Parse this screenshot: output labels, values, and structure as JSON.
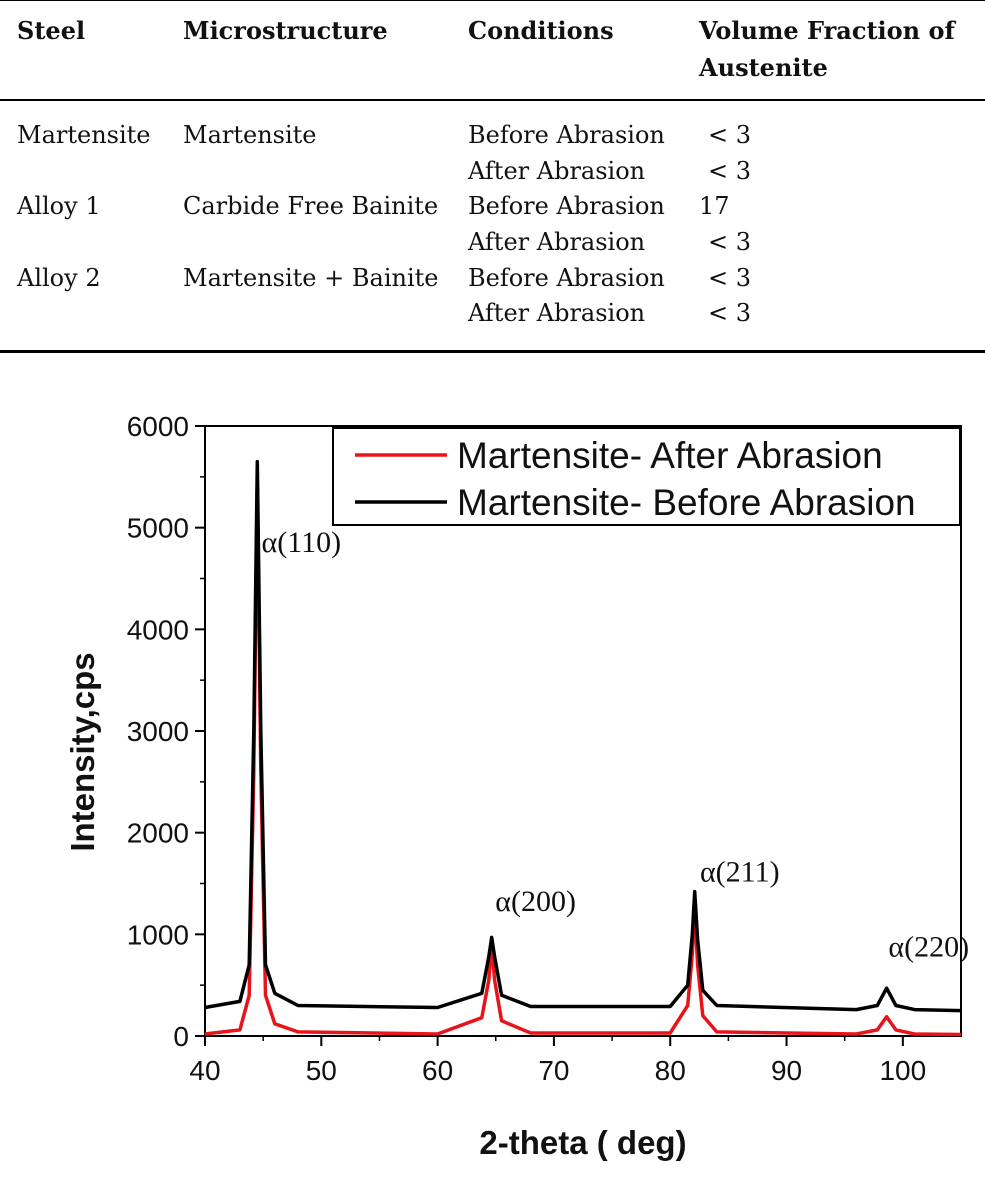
{
  "table": {
    "headers": [
      "Steel",
      "Microstructure",
      "Conditions",
      "Volume Fraction of Austenite"
    ],
    "rows": [
      {
        "steel": "Martensite",
        "microstructure": "Martensite",
        "condition": "Before Abrasion",
        "austenite": "< 3"
      },
      {
        "steel": "",
        "microstructure": "",
        "condition": "After Abrasion",
        "austenite": "< 3"
      },
      {
        "steel": "Alloy 1",
        "microstructure": "Carbide Free Bainite",
        "condition": "Before Abrasion",
        "austenite": "17"
      },
      {
        "steel": "",
        "microstructure": "",
        "condition": "After Abrasion",
        "austenite": "< 3"
      },
      {
        "steel": "Alloy 2",
        "microstructure": "Martensite + Bainite",
        "condition": "Before Abrasion",
        "austenite": "< 3"
      },
      {
        "steel": "",
        "microstructure": "",
        "condition": "After Abrasion",
        "austenite": "< 3"
      }
    ]
  },
  "chart_data": {
    "type": "line",
    "title": "",
    "xlabel": "2-theta ( deg)",
    "ylabel": "Intensity,cps",
    "xlim": [
      40,
      105
    ],
    "ylim": [
      0,
      6000
    ],
    "xticks": [
      40,
      50,
      60,
      70,
      80,
      90,
      100
    ],
    "yticks": [
      0,
      1000,
      2000,
      3000,
      4000,
      5000,
      6000
    ],
    "legend_position": "top-right",
    "series": [
      {
        "name": "Martensite- After Abrasion",
        "color": "#e8141b",
        "x": [
          40,
          43,
          43.8,
          44.2,
          44.5,
          44.8,
          45.2,
          46,
          48,
          60,
          63.8,
          64.4,
          64.65,
          64.9,
          65.5,
          68,
          80,
          81.5,
          81.9,
          82.1,
          82.35,
          82.8,
          84,
          96,
          97.8,
          98.6,
          99.4,
          101,
          105
        ],
        "y": [
          20,
          60,
          400,
          2600,
          5450,
          2600,
          400,
          120,
          40,
          20,
          180,
          550,
          900,
          550,
          150,
          30,
          30,
          300,
          800,
          1250,
          700,
          200,
          40,
          20,
          60,
          190,
          60,
          20,
          15
        ]
      },
      {
        "name": "Martensite- Before Abrasion",
        "color": "#000000",
        "x": [
          40,
          43,
          43.8,
          44.2,
          44.5,
          44.8,
          45.2,
          46,
          48,
          60,
          63.8,
          64.4,
          64.65,
          64.9,
          65.5,
          68,
          80,
          81.5,
          81.9,
          82.1,
          82.35,
          82.8,
          84,
          96,
          97.8,
          98.6,
          99.4,
          101,
          105
        ],
        "y": [
          280,
          340,
          700,
          3000,
          5650,
          3000,
          700,
          420,
          300,
          280,
          420,
          780,
          970,
          780,
          400,
          290,
          290,
          500,
          1000,
          1420,
          950,
          450,
          300,
          260,
          300,
          470,
          300,
          260,
          250
        ]
      }
    ],
    "annotations": [
      {
        "text": "α(110)",
        "x": 44.6,
        "y": 4760
      },
      {
        "text": "α(200)",
        "x": 64.7,
        "y": 1230
      },
      {
        "text": "α(211)",
        "x": 82.3,
        "y": 1520
      },
      {
        "text": "α(220)",
        "x": 98.5,
        "y": 780
      }
    ]
  }
}
